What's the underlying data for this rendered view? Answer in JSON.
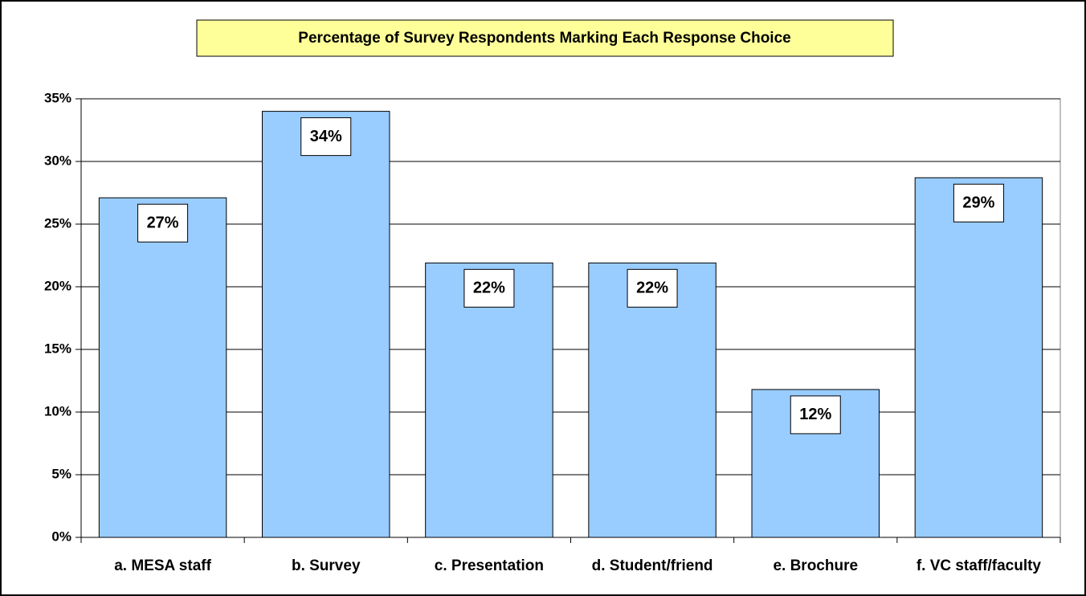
{
  "chart_data": {
    "type": "bar",
    "title": "Percentage of Survey Respondents Marking Each Response Choice",
    "categories": [
      "a. MESA staff",
      "b. Survey",
      "c. Presentation",
      "d. Student/friend",
      "e. Brochure",
      "f. VC staff/faculty"
    ],
    "values": [
      27.1,
      34,
      21.9,
      21.9,
      11.8,
      28.7
    ],
    "value_labels": [
      "27%",
      "34%",
      "22%",
      "22%",
      "12%",
      "29%"
    ],
    "color": "#99ccff",
    "ylim": [
      0,
      35
    ],
    "yticks": [
      {
        "value": 0,
        "label": "0%"
      },
      {
        "value": 5,
        "label": "5%"
      },
      {
        "value": 10,
        "label": "10%"
      },
      {
        "value": 15,
        "label": "15%"
      },
      {
        "value": 20,
        "label": "20%"
      },
      {
        "value": 25,
        "label": "25%"
      },
      {
        "value": 30,
        "label": "30%"
      },
      {
        "value": 35,
        "label": "35%"
      }
    ],
    "grid": true
  }
}
